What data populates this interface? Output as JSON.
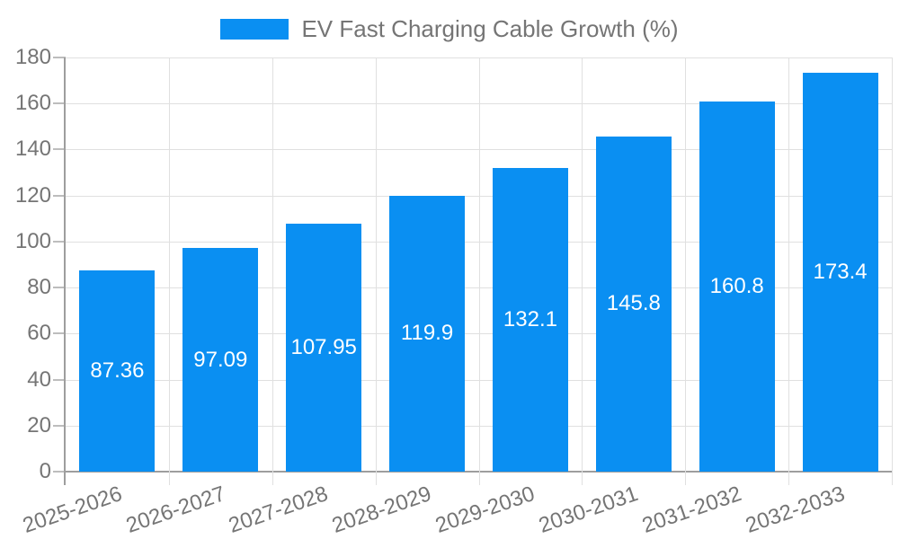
{
  "legend": {
    "label": "EV Fast Charging Cable Growth (%)"
  },
  "chart_data": {
    "type": "bar",
    "title": "EV Fast Charging Cable Growth (%)",
    "categories": [
      "2025-2026",
      "2026-2027",
      "2027-2028",
      "2028-2029",
      "2029-2030",
      "2030-2031",
      "2031-2032",
      "2032-2033"
    ],
    "values": [
      87.36,
      97.09,
      107.95,
      119.9,
      132.1,
      145.8,
      160.8,
      173.4
    ],
    "value_labels": [
      "87.36",
      "97.09",
      "107.95",
      "119.9",
      "132.1",
      "145.8",
      "160.8",
      "173.4"
    ],
    "xlabel": "",
    "ylabel": "",
    "ylim": [
      0,
      180
    ],
    "yticks": [
      0,
      20,
      40,
      60,
      80,
      100,
      120,
      140,
      160,
      180
    ],
    "grid": true,
    "legend_position": "top-center",
    "colors": {
      "bar": "#0a8ff2",
      "bar_label": "#ffffff",
      "axis_text": "#757575",
      "grid_line": "#e0e0e0",
      "axis_line": "#9e9e9e",
      "background": "#ffffff"
    }
  }
}
